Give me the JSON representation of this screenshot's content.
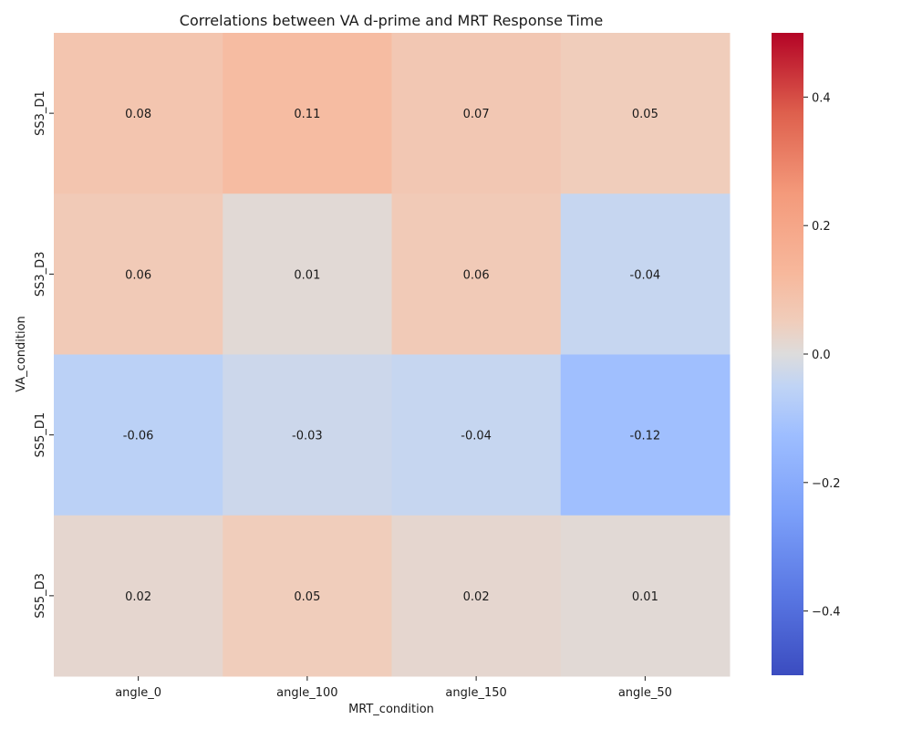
{
  "chart_data": {
    "type": "heatmap",
    "title": "Correlations between VA d-prime and MRT Response Time",
    "xlabel": "MRT_condition",
    "ylabel": "VA_condition",
    "x_categories": [
      "angle_0",
      "angle_100",
      "angle_150",
      "angle_50"
    ],
    "y_categories": [
      "SS3_D1",
      "SS3_D3",
      "SS5_D1",
      "SS5_D3"
    ],
    "values": [
      [
        0.08,
        0.11,
        0.07,
        0.05
      ],
      [
        0.06,
        0.01,
        0.06,
        -0.04
      ],
      [
        -0.06,
        -0.03,
        -0.04,
        -0.12
      ],
      [
        0.02,
        0.05,
        0.02,
        0.01
      ]
    ],
    "value_labels": [
      [
        "0.08",
        "0.11",
        "0.07",
        "0.05"
      ],
      [
        "0.06",
        "0.01",
        "0.06",
        "-0.04"
      ],
      [
        "-0.06",
        "-0.03",
        "-0.04",
        "-0.12"
      ],
      [
        "0.02",
        "0.05",
        "0.02",
        "0.01"
      ]
    ],
    "colormap": "coolwarm",
    "colorbar_range": [
      -0.5,
      0.5
    ],
    "colorbar_ticks": [
      -0.4,
      -0.2,
      0.0,
      0.2,
      0.4
    ],
    "colorbar_tick_labels": [
      "−0.4",
      "−0.2",
      "0.0",
      "0.2",
      "0.4"
    ],
    "colors": {
      "cmap_low": "#3b4cc0",
      "cmap_mid": "#dddcdc",
      "cmap_high": "#b40426",
      "text": "#1a1a1a"
    }
  }
}
